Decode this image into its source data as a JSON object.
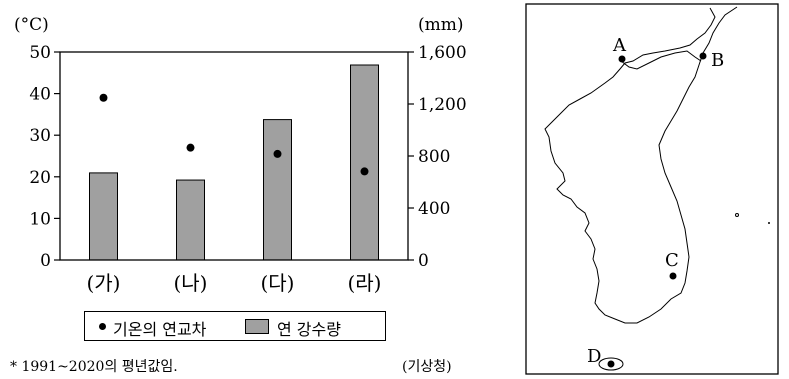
{
  "chart_data": {
    "type": "bar",
    "categories": [
      "(가)",
      "(나)",
      "(다)",
      "(라)"
    ],
    "series": [
      {
        "name": "연 강수량",
        "type": "bar",
        "axis": "right",
        "values": [
          670,
          615,
          1080,
          1500
        ]
      },
      {
        "name": "기온의 연교차",
        "type": "scatter",
        "axis": "left",
        "values": [
          39,
          27,
          25.5,
          21.3
        ]
      }
    ],
    "y_left": {
      "unit": "(°C)",
      "min": 0,
      "max": 50,
      "ticks": [
        "0",
        "10",
        "20",
        "30",
        "40",
        "50"
      ]
    },
    "y_right": {
      "unit": "(mm)",
      "min": 0,
      "max": 1600,
      "ticks": [
        "0",
        "400",
        "800",
        "1,200",
        "1,600"
      ]
    },
    "legend": {
      "items": [
        "기온의 연교차",
        "연 강수량"
      ],
      "placement": "bottom"
    },
    "colors": {
      "bar": "#a0a0a0",
      "point": "#000000"
    },
    "grid": false
  },
  "footnote": "* 1991~2020의 평년값임.",
  "source": "(기상청)",
  "map": {
    "labels": [
      "A",
      "B",
      "C",
      "D"
    ]
  }
}
